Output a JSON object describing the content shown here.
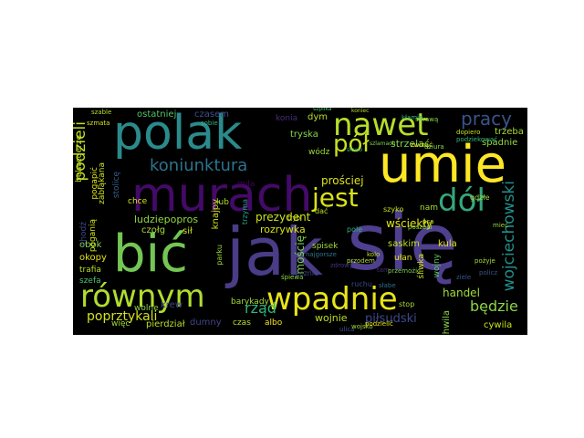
{
  "wordcloud": {
    "background": "#000000",
    "words": [
      {
        "text": "się",
        "color": "#4f3f8f"
      },
      {
        "text": "jak",
        "color": "#4a3c86"
      },
      {
        "text": "bić",
        "color": "#74c654"
      },
      {
        "text": "umie",
        "color": "#fde725"
      },
      {
        "text": "murach",
        "color": "#440a68"
      },
      {
        "text": "polak",
        "color": "#2b8a8c"
      },
      {
        "text": "nawet",
        "color": "#b6de2b"
      },
      {
        "text": "dół",
        "color": "#35a77c"
      },
      {
        "text": "równym",
        "color": "#b0dd2f"
      },
      {
        "text": "wpadnie",
        "color": "#e8e419"
      },
      {
        "text": "jest",
        "color": "#d8e219"
      },
      {
        "text": "pół",
        "color": "#c7e020"
      },
      {
        "text": "pracy",
        "color": "#3b528b"
      },
      {
        "text": "koniunktura",
        "color": "#2c738e"
      },
      {
        "text": "podzieli",
        "color": "#c2df23"
      },
      {
        "text": "wojciechowski",
        "color": "#21908c"
      },
      {
        "text": "rząd",
        "color": "#2fb47c"
      },
      {
        "text": "będzie",
        "color": "#8bd646"
      },
      {
        "text": "poprztykali",
        "color": "#d2e21b"
      },
      {
        "text": "piłsudski",
        "color": "#3e4989"
      },
      {
        "text": "handel",
        "color": "#a2da37"
      },
      {
        "text": "wojnie",
        "color": "#bddf26"
      },
      {
        "text": "prezydent",
        "color": "#cae11f"
      },
      {
        "text": "rozrywka",
        "color": "#d5e21a"
      },
      {
        "text": "ludziepopros",
        "color": "#8fd744"
      },
      {
        "text": "wściekły",
        "color": "#e5e419"
      },
      {
        "text": "prościej",
        "color": "#dde318"
      },
      {
        "text": "strzelać",
        "color": "#7cd250"
      },
      {
        "text": "spadnie",
        "color": "#95d840"
      },
      {
        "text": "trzeba",
        "color": "#a8db34"
      },
      {
        "text": "dym",
        "color": "#b5de2b"
      },
      {
        "text": "tryska",
        "color": "#86d549"
      },
      {
        "text": "wódz",
        "color": "#9dd93b"
      },
      {
        "text": "konia",
        "color": "#472d7b"
      },
      {
        "text": "ostatniej",
        "color": "#52c569"
      },
      {
        "text": "czasem",
        "color": "#3b528b"
      },
      {
        "text": "cywila",
        "color": "#cde11d"
      },
      {
        "text": "chwila",
        "color": "#8ed645"
      },
      {
        "text": "dumny",
        "color": "#414487"
      },
      {
        "text": "więc",
        "color": "#a0da39"
      },
      {
        "text": "pierdział",
        "color": "#bade28"
      },
      {
        "text": "czas",
        "color": "#b8de29"
      },
      {
        "text": "albo",
        "color": "#efe51c"
      },
      {
        "text": "barykady",
        "color": "#a5db36"
      },
      {
        "text": "mościę",
        "color": "#7ad151"
      },
      {
        "text": "knajpy",
        "color": "#d0e11c"
      },
      {
        "text": "okopy",
        "color": "#e2e418"
      },
      {
        "text": "obok",
        "color": "#7fd34e"
      },
      {
        "text": "trafia",
        "color": "#bbdf27"
      },
      {
        "text": "szefa",
        "color": "#4ac16d"
      },
      {
        "text": "chodź",
        "color": "#3f4788"
      },
      {
        "text": "czołg",
        "color": "#a8db34"
      },
      {
        "text": "sił",
        "color": "#cfe11c"
      },
      {
        "text": "krew",
        "color": "#3e4989"
      },
      {
        "text": "wolne",
        "color": "#8ed645"
      },
      {
        "text": "poganią",
        "color": "#d5e21a"
      },
      {
        "text": "pogapić",
        "color": "#e0e318"
      },
      {
        "text": "zabłąkana",
        "color": "#cae11f"
      },
      {
        "text": "stolicę",
        "color": "#355f8d"
      },
      {
        "text": "belwederze",
        "color": "#bddf26"
      },
      {
        "text": "chce",
        "color": "#d8e219"
      },
      {
        "text": "lub",
        "color": "#b5de2b"
      },
      {
        "text": "nam",
        "color": "#aadc32"
      },
      {
        "text": "saskim",
        "color": "#c2df23"
      },
      {
        "text": "ułan",
        "color": "#e5e419"
      },
      {
        "text": "kula",
        "color": "#e2e418"
      },
      {
        "text": "spisek",
        "color": "#a0da39"
      },
      {
        "text": "wojny",
        "color": "#5ec962"
      },
      {
        "text": "śliwka",
        "color": "#d5e21a"
      },
      {
        "text": "trzyma",
        "color": "#22a785"
      },
      {
        "text": "parku",
        "color": "#a2da37"
      },
      {
        "text": "ruchu",
        "color": "#3e4989"
      },
      {
        "text": "śpiewa",
        "color": "#8fd744"
      },
      {
        "text": "przodem",
        "color": "#b0dd2f"
      },
      {
        "text": "słabe",
        "color": "#2d708e"
      },
      {
        "text": "miła",
        "color": "#440154"
      },
      {
        "text": "policz",
        "color": "#3a538b"
      },
      {
        "text": "ziele",
        "color": "#38588c"
      },
      {
        "text": "stop",
        "color": "#a5db36"
      },
      {
        "text": "pole",
        "color": "#2fb47c"
      },
      {
        "text": "ręcznie",
        "color": "#3e4989"
      },
      {
        "text": "zdrowy",
        "color": "#46337e"
      },
      {
        "text": "szable",
        "color": "#b6de2b"
      },
      {
        "text": "dać",
        "color": "#bddf26"
      },
      {
        "text": "szyko",
        "color": "#cae11f"
      },
      {
        "text": "gdzie",
        "color": "#9dd93b"
      },
      {
        "text": "sobie",
        "color": "#35b779"
      },
      {
        "text": "kłamie",
        "color": "#35b779"
      },
      {
        "text": "sprawą",
        "color": "#86d549"
      },
      {
        "text": "tam",
        "color": "#472d7b"
      },
      {
        "text": "pożyje",
        "color": "#a2da37"
      },
      {
        "text": "kolo",
        "color": "#bddf26"
      },
      {
        "text": "ulica",
        "color": "#3b528b"
      },
      {
        "text": "wojsko",
        "color": "#a0da39"
      },
      {
        "text": "podzielić",
        "color": "#e8e419"
      },
      {
        "text": "najgorsze",
        "color": "#2c728e"
      },
      {
        "text": "przemożić",
        "color": "#7ad151"
      },
      {
        "text": "psa",
        "color": "#cae11f"
      },
      {
        "text": "poszedł",
        "color": "#90d743"
      },
      {
        "text": "mieć",
        "color": "#9dd93b"
      },
      {
        "text": "dopiero",
        "color": "#c5e021"
      },
      {
        "text": "podziekować",
        "color": "#35b779"
      },
      {
        "text": "szmata",
        "color": "#d8e219"
      },
      {
        "text": "zwinąć",
        "color": "#ece51b"
      },
      {
        "text": "dziura",
        "color": "#86d549"
      },
      {
        "text": "koniec",
        "color": "#b8de29"
      },
      {
        "text": "szpilka",
        "color": "#4ac16d"
      },
      {
        "text": "tryb",
        "color": "#d2e21b"
      },
      {
        "text": "szlamach",
        "color": "#7cd250"
      },
      {
        "text": "słowo",
        "color": "#35b779"
      }
    ]
  }
}
